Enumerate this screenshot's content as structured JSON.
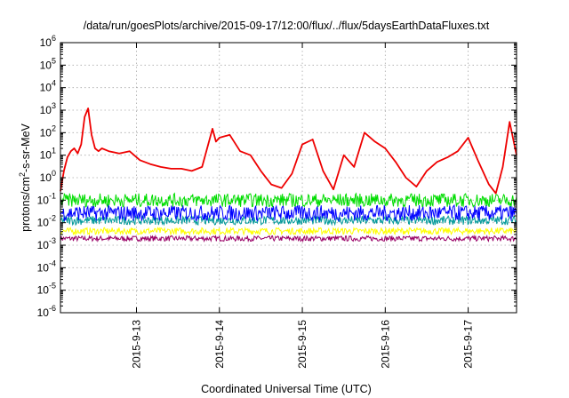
{
  "chart_data": {
    "type": "line",
    "title": "/data/run/goesPlots/archive/2015-09-17/12:00/flux/../flux/5daysEarthDataFluxes.txt",
    "xlabel": "Coordinated Universal Time (UTC)",
    "ylabel": {
      "prefix": "protons/cm",
      "sup": "2",
      "suffix": "-s-sr-MeV"
    },
    "y_scale": "log",
    "ylim": [
      1e-06,
      1000000.0
    ],
    "y_ticks": [
      {
        "value": 1e-06,
        "base": "10",
        "exp": "-6"
      },
      {
        "value": 1e-05,
        "base": "10",
        "exp": "-5"
      },
      {
        "value": 0.0001,
        "base": "10",
        "exp": "-4"
      },
      {
        "value": 0.001,
        "base": "10",
        "exp": "-3"
      },
      {
        "value": 0.01,
        "base": "10",
        "exp": "-2"
      },
      {
        "value": 0.1,
        "base": "10",
        "exp": "-1"
      },
      {
        "value": 1,
        "base": "10",
        "exp": "0"
      },
      {
        "value": 10,
        "base": "10",
        "exp": "1"
      },
      {
        "value": 100,
        "base": "10",
        "exp": "2"
      },
      {
        "value": 1000,
        "base": "10",
        "exp": "3"
      },
      {
        "value": 10000,
        "base": "10",
        "exp": "4"
      },
      {
        "value": 100000,
        "base": "10",
        "exp": "5"
      },
      {
        "value": 1000000,
        "base": "10",
        "exp": "6"
      }
    ],
    "xlim": [
      "2015-09-12T02:00",
      "2015-09-17T14:00"
    ],
    "x_ticks": [
      {
        "value": "2015-09-13T00:00",
        "label": "2015-9-13"
      },
      {
        "value": "2015-09-14T00:00",
        "label": "2015-9-14"
      },
      {
        "value": "2015-09-15T00:00",
        "label": "2015-9-15"
      },
      {
        "value": "2015-09-16T00:00",
        "label": "2015-9-16"
      },
      {
        "value": "2015-09-17T00:00",
        "label": "2015-9-17"
      }
    ],
    "grid": true,
    "series": [
      {
        "color": "#ee0000",
        "x": [
          "2015-09-12T02:00",
          "2015-09-12T03:00",
          "2015-09-12T04:00",
          "2015-09-12T05:00",
          "2015-09-12T06:00",
          "2015-09-12T07:00",
          "2015-09-12T08:00",
          "2015-09-12T09:00",
          "2015-09-12T10:00",
          "2015-09-12T11:00",
          "2015-09-12T12:00",
          "2015-09-12T13:00",
          "2015-09-12T14:00",
          "2015-09-12T16:00",
          "2015-09-12T19:00",
          "2015-09-12T22:00",
          "2015-09-13T01:00",
          "2015-09-13T04:00",
          "2015-09-13T07:00",
          "2015-09-13T10:00",
          "2015-09-13T13:00",
          "2015-09-13T16:00",
          "2015-09-13T19:00",
          "2015-09-13T22:00",
          "2015-09-13T23:00",
          "2015-09-14T00:00",
          "2015-09-14T03:00",
          "2015-09-14T06:00",
          "2015-09-14T09:00",
          "2015-09-14T12:00",
          "2015-09-14T15:00",
          "2015-09-14T18:00",
          "2015-09-14T21:00",
          "2015-09-15T00:00",
          "2015-09-15T03:00",
          "2015-09-15T06:00",
          "2015-09-15T09:00",
          "2015-09-15T12:00",
          "2015-09-15T15:00",
          "2015-09-15T18:00",
          "2015-09-15T21:00",
          "2015-09-16T00:00",
          "2015-09-16T03:00",
          "2015-09-16T06:00",
          "2015-09-16T09:00",
          "2015-09-16T12:00",
          "2015-09-16T15:00",
          "2015-09-16T18:00",
          "2015-09-16T21:00",
          "2015-09-17T00:00",
          "2015-09-17T03:00",
          "2015-09-17T06:00",
          "2015-09-17T08:00",
          "2015-09-17T10:00",
          "2015-09-17T12:00",
          "2015-09-17T14:00"
        ],
        "values": [
          0.25,
          2,
          8,
          15,
          20,
          12,
          30,
          500,
          1200,
          80,
          20,
          15,
          20,
          15,
          12,
          15,
          6,
          4,
          3,
          2.5,
          2.5,
          2,
          3,
          150,
          40,
          60,
          80,
          15,
          10,
          2,
          0.5,
          0.35,
          1.5,
          30,
          50,
          2,
          0.3,
          10,
          3,
          100,
          40,
          20,
          5,
          1,
          0.4,
          2,
          5,
          8,
          15,
          60,
          5,
          0.5,
          0.2,
          3,
          300,
          10
        ]
      },
      {
        "color": "#00dd00",
        "band": [
          0.05,
          0.2
        ]
      },
      {
        "color": "#0000ff",
        "band": [
          0.012,
          0.06
        ]
      },
      {
        "color": "#009999",
        "band": [
          0.008,
          0.02
        ]
      },
      {
        "color": "#ffff00",
        "band": [
          0.003,
          0.006
        ]
      },
      {
        "color": "#990066",
        "band": [
          0.0015,
          0.0026
        ]
      }
    ]
  }
}
